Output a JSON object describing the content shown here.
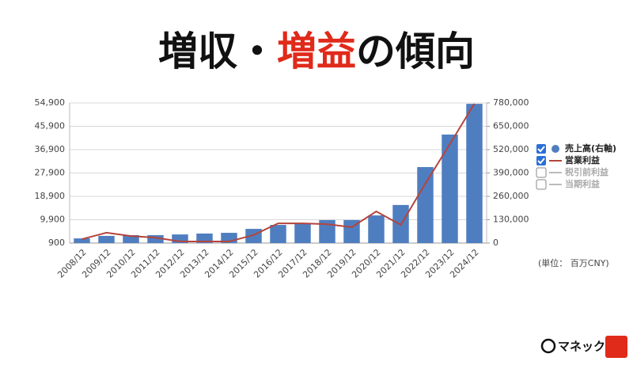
{
  "chart_data": {
    "type": "bar-line",
    "title_parts": [
      {
        "text": "増収・",
        "color": "#111111"
      },
      {
        "text": "増益",
        "color": "#e02a1a"
      },
      {
        "text": "の傾向",
        "color": "#111111"
      }
    ],
    "categories": [
      "2008/12",
      "2009/12",
      "2010/12",
      "2011/12",
      "2012/12",
      "2013/12",
      "2014/12",
      "2015/12",
      "2016/12",
      "2017/12",
      "2018/12",
      "2019/12",
      "2020/12",
      "2021/12",
      "2022/12",
      "2023/12",
      "2024/12"
    ],
    "series": [
      {
        "name": "売上高(右軸)",
        "type": "bar",
        "axis": "y2",
        "color": "#4f7ec0",
        "visible": true,
        "values": [
          26000,
          40000,
          44000,
          44000,
          48000,
          53000,
          57000,
          79000,
          101000,
          110000,
          128000,
          128000,
          154000,
          212000,
          423000,
          604000,
          775000
        ]
      },
      {
        "name": "営業利益",
        "type": "line",
        "color": "#b5443c",
        "visible": true,
        "values": [
          2400,
          4900,
          3600,
          3000,
          1500,
          1500,
          1500,
          4000,
          8500,
          8500,
          8200,
          7000,
          13100,
          7900,
          23800,
          39000,
          54600
        ]
      },
      {
        "name": "税引前利益",
        "type": "line",
        "color": "#bbbbbb",
        "visible": false,
        "values": [
          null,
          null,
          null,
          null,
          null,
          null,
          null,
          null,
          null,
          null,
          null,
          null,
          null,
          null,
          null,
          null,
          null
        ]
      },
      {
        "name": "当期利益",
        "type": "line",
        "color": "#bbbbbb",
        "visible": false,
        "values": [
          null,
          null,
          null,
          null,
          null,
          null,
          null,
          null,
          null,
          null,
          null,
          null,
          null,
          null,
          null,
          null,
          null
        ]
      }
    ],
    "ylim": [
      900,
      54900
    ],
    "yticks": [
      900,
      {
        "value": 9900,
        "label": "9,900"
      },
      {
        "value": 18900,
        "label": "18,900"
      },
      {
        "value": 27900,
        "label": "27,900"
      },
      {
        "value": 36900,
        "label": "36,900"
      },
      {
        "value": 45900,
        "label": "45,900"
      },
      {
        "value": 54900,
        "label": "54,900"
      }
    ],
    "y2lim": [
      0,
      780000
    ],
    "y2ticks": [
      0,
      {
        "value": 130000,
        "label": "130,000"
      },
      {
        "value": 260000,
        "label": "260,000"
      },
      {
        "value": 390000,
        "label": "390,000"
      },
      {
        "value": 520000,
        "label": "520,000"
      },
      {
        "value": 650000,
        "label": "650,000"
      },
      {
        "value": 780000,
        "label": "780,000"
      }
    ],
    "grid": true,
    "unit_note": "(単位： 百万CNY)",
    "brand": "マネックス"
  }
}
